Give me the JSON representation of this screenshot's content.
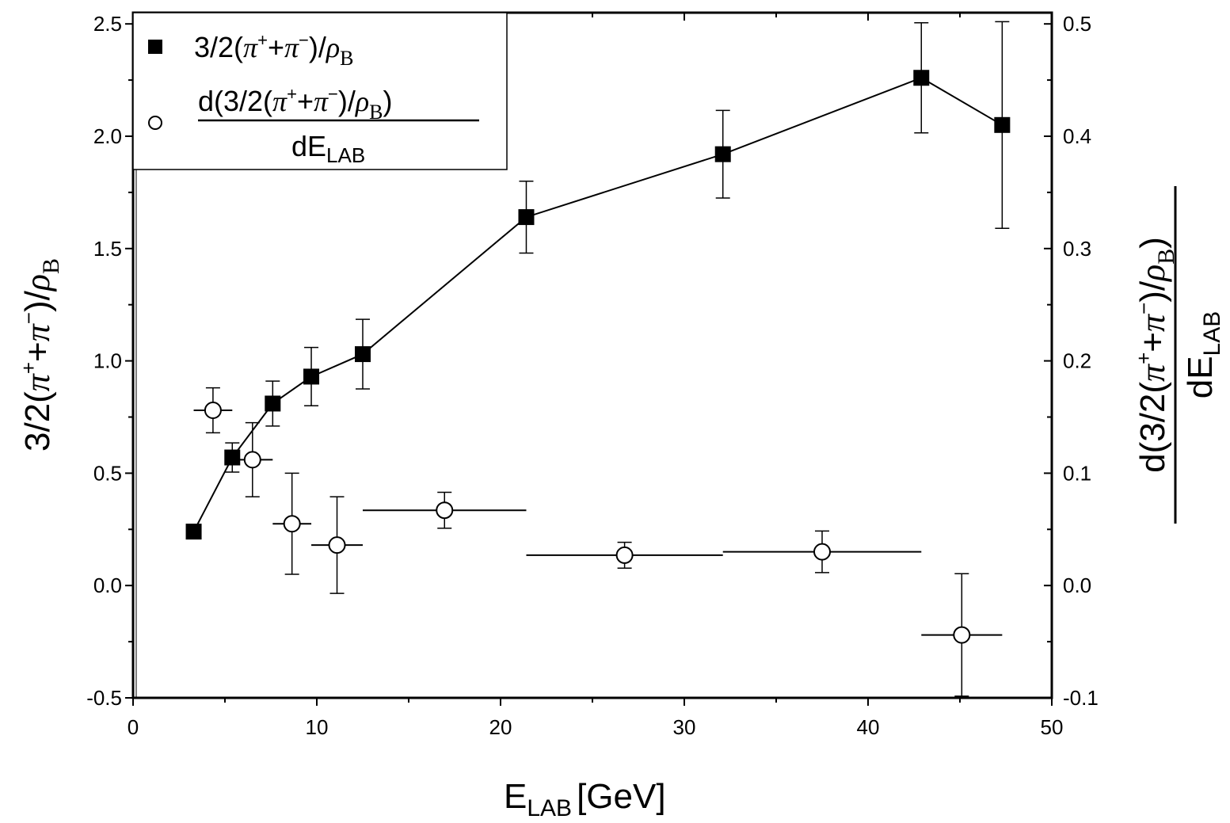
{
  "chart_data": {
    "type": "scatter",
    "x_axis": {
      "label_main": "E",
      "label_sub": "LAB",
      "label_suffix": "[GeV]",
      "range": [
        0,
        50
      ],
      "ticks": [
        "0",
        "10",
        "20",
        "30",
        "40",
        "50"
      ]
    },
    "y_left_axis": {
      "label": "3/2(π⁺+π⁻)/ρ_B",
      "range": [
        -0.5,
        2.55
      ],
      "ticks": [
        "-0.5",
        "0.0",
        "0.5",
        "1.0",
        "1.5",
        "2.0",
        "2.5"
      ]
    },
    "y_right_axis": {
      "label_numerator": "d(3/2(π⁺+π⁻)/ρ_B)",
      "label_denominator": "dE_LAB",
      "range": [
        -0.1,
        0.51
      ],
      "ticks": [
        "-0.1",
        "0.0",
        "0.1",
        "0.2",
        "0.3",
        "0.4",
        "0.5"
      ]
    },
    "legend": {
      "position": "top-left",
      "entries": [
        {
          "marker": "filled-square",
          "text": "3/2(π⁺+π⁻)/ρ_B"
        },
        {
          "marker": "open-circle",
          "numerator": "d(3/2(π⁺+π⁻)/ρ_B)",
          "denominator": "dE_LAB"
        }
      ]
    },
    "series": [
      {
        "name": "3/2(π⁺+π⁻)/ρ_B",
        "axis": "left",
        "marker": "filled-square",
        "connected": true,
        "points": [
          {
            "x": 3.3,
            "y": 0.24,
            "yerr": null
          },
          {
            "x": 5.4,
            "y": 0.57,
            "yerr": 0.065
          },
          {
            "x": 7.6,
            "y": 0.81,
            "yerr": 0.1
          },
          {
            "x": 9.7,
            "y": 0.93,
            "yerr": 0.13
          },
          {
            "x": 12.5,
            "y": 1.03,
            "yerr": 0.155
          },
          {
            "x": 21.4,
            "y": 1.64,
            "yerr": 0.16
          },
          {
            "x": 32.1,
            "y": 1.92,
            "yerr": 0.195
          },
          {
            "x": 42.9,
            "y": 2.26,
            "yerr": 0.245
          },
          {
            "x": 47.3,
            "y": 2.05,
            "yerr": 0.46
          }
        ]
      },
      {
        "name": "d(3/2(π⁺+π⁻)/ρ_B)/dE_LAB",
        "axis": "right",
        "marker": "open-circle",
        "connected": false,
        "points": [
          {
            "x": 4.35,
            "y": 0.156,
            "xerr": 1.05,
            "yerr": 0.02
          },
          {
            "x": 6.5,
            "y": 0.112,
            "xerr": 1.1,
            "yerr": 0.033
          },
          {
            "x": 8.65,
            "y": 0.055,
            "xerr": 1.05,
            "yerr": 0.045
          },
          {
            "x": 11.1,
            "y": 0.036,
            "xerr": 1.4,
            "yerr": 0.043
          },
          {
            "x": 16.95,
            "y": 0.067,
            "xerr": 4.45,
            "yerr": 0.016
          },
          {
            "x": 26.75,
            "y": 0.027,
            "xerr": 5.35,
            "yerr": 0.0115
          },
          {
            "x": 37.5,
            "y": 0.03,
            "xerr": 5.4,
            "yerr": 0.0185
          },
          {
            "x": 45.1,
            "y": -0.044,
            "xerr": 2.2,
            "yerr": 0.0545
          }
        ]
      }
    ]
  }
}
